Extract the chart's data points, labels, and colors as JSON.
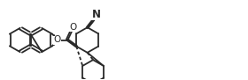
{
  "bg_color": "#ffffff",
  "line_color": "#2a2a2a",
  "lw": 1.3,
  "lw_bold": 2.5,
  "figsize": [
    2.8,
    0.91
  ],
  "dpi": 100,
  "N_label": "N",
  "O_label": "O",
  "O2_label": "O",
  "label_fontsize": 7.5,
  "ring_r": 0.32,
  "xlim": [
    -0.3,
    5.8
  ],
  "ylim": [
    -1.05,
    1.05
  ]
}
